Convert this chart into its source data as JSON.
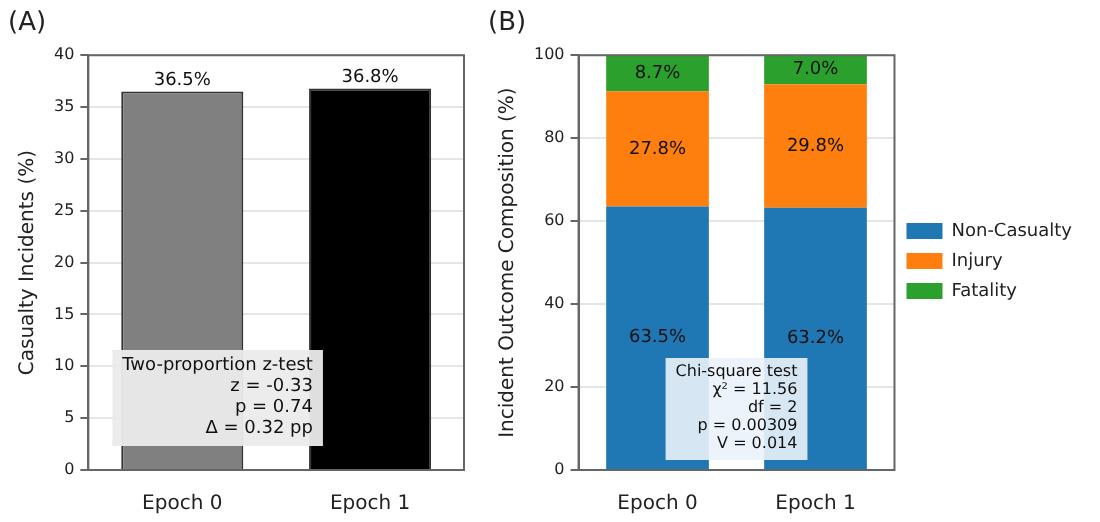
{
  "chart_data": [
    {
      "type": "bar",
      "title": "(A)",
      "ylabel": "Casualty Incidents (%)",
      "categories": [
        "Epoch 0",
        "Epoch 1"
      ],
      "values": [
        36.5,
        36.8
      ],
      "colors": [
        "#808080",
        "#000000"
      ],
      "value_labels": [
        "36.5%",
        "36.8%"
      ],
      "ylim": [
        0,
        40
      ],
      "yticks": [
        0,
        5,
        10,
        15,
        20,
        25,
        30,
        35,
        40
      ],
      "grid": "y",
      "annotations": [
        "Two-proportion z-test\nz = -0.33\np = 0.74\nΔ = 0.32 pp"
      ]
    },
    {
      "type": "bar",
      "title": "(B)",
      "ylabel": "Incident Outcome Composition (%)",
      "categories": [
        "Epoch 0",
        "Epoch 1"
      ],
      "stacked": true,
      "legend": "right",
      "grid": "y",
      "series": [
        {
          "name": "Non-Casualty",
          "color": "#1f77b4",
          "values": [
            63.5,
            63.2
          ],
          "value_labels": [
            "63.5%",
            "63.2%"
          ]
        },
        {
          "name": "Injury",
          "color": "#ff7f0e",
          "values": [
            27.8,
            29.8
          ],
          "value_labels": [
            "27.8%",
            "29.8%"
          ]
        },
        {
          "name": "Fatality",
          "color": "#2ca02c",
          "values": [
            8.7,
            7.0
          ],
          "value_labels": [
            "8.7%",
            "7.0%"
          ]
        }
      ],
      "ylim": [
        0,
        100
      ],
      "yticks": [
        0,
        20,
        40,
        60,
        80,
        100
      ],
      "annotations": [
        "Chi-square test\nχ² = 11.56\ndf = 2\np = 0.00309\nV = 0.014"
      ]
    }
  ]
}
